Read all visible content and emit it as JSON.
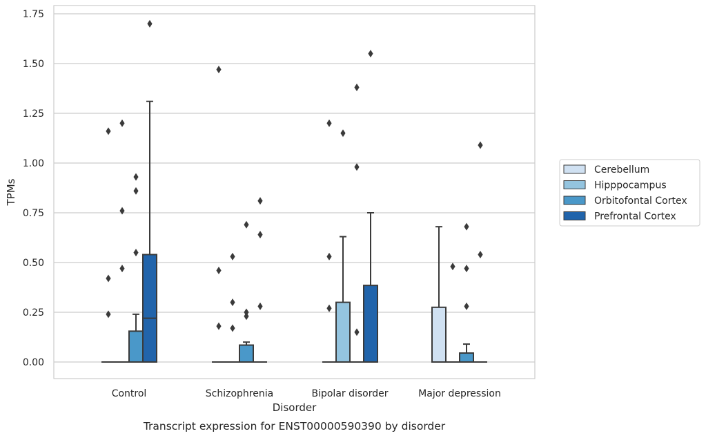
{
  "chart_data": {
    "type": "box",
    "title": "Transcript expression for ENST00000590390 by disorder",
    "xlabel": "Disorder",
    "ylabel": "TPMs",
    "ylim": [
      -0.08,
      1.78
    ],
    "yticks": [
      "0.00",
      "0.25",
      "0.50",
      "0.75",
      "1.00",
      "1.25",
      "1.50",
      "1.75"
    ],
    "ytick_values": [
      0,
      0.25,
      0.5,
      0.75,
      1.0,
      1.25,
      1.5,
      1.75
    ],
    "grid": true,
    "legend_position": "right",
    "categories": [
      "Control",
      "Schizophrenia",
      "Bipolar disorder",
      "Major depression"
    ],
    "series": [
      {
        "name": "Cerebellum",
        "color": "#d0e1f2",
        "boxes": [
          {
            "q1": 0,
            "median": 0,
            "q3": 0,
            "whisker_low": 0,
            "whisker_high": 0,
            "outliers": [
              0.24,
              0.42,
              1.16
            ]
          },
          {
            "q1": 0,
            "median": 0,
            "q3": 0,
            "whisker_low": 0,
            "whisker_high": 0,
            "outliers": [
              0.18,
              0.46,
              1.47
            ]
          },
          {
            "q1": 0,
            "median": 0,
            "q3": 0,
            "whisker_low": 0,
            "whisker_high": 0,
            "outliers": [
              0.27,
              0.53,
              1.2
            ]
          },
          {
            "q1": 0,
            "median": 0,
            "q3": 0.275,
            "whisker_low": 0,
            "whisker_high": 0.68,
            "outliers": []
          }
        ]
      },
      {
        "name": "Hipppocampus",
        "color": "#94c4df",
        "boxes": [
          {
            "q1": 0,
            "median": 0,
            "q3": 0,
            "whisker_low": 0,
            "whisker_high": 0,
            "outliers": [
              0.47,
              0.76,
              1.2
            ]
          },
          {
            "q1": 0,
            "median": 0,
            "q3": 0,
            "whisker_low": 0,
            "whisker_high": 0,
            "outliers": [
              0.17,
              0.3,
              0.53
            ]
          },
          {
            "q1": 0,
            "median": 0,
            "q3": 0.3,
            "whisker_low": 0,
            "whisker_high": 0.63,
            "outliers": [
              1.15
            ]
          },
          {
            "q1": 0,
            "median": 0,
            "q3": 0,
            "whisker_low": 0,
            "whisker_high": 0,
            "outliers": [
              0.48
            ]
          }
        ]
      },
      {
        "name": "Orbitofontal Cortex",
        "color": "#4a98c9",
        "boxes": [
          {
            "q1": 0,
            "median": 0,
            "q3": 0.155,
            "whisker_low": 0,
            "whisker_high": 0.24,
            "outliers": [
              0.55,
              0.86,
              0.93
            ]
          },
          {
            "q1": 0,
            "median": 0,
            "q3": 0.085,
            "whisker_low": 0,
            "whisker_high": 0.1,
            "outliers": [
              0.23,
              0.25,
              0.69
            ]
          },
          {
            "q1": 0,
            "median": 0,
            "q3": 0,
            "whisker_low": 0,
            "whisker_high": 0,
            "outliers": [
              0.15,
              0.98,
              1.38
            ]
          },
          {
            "q1": 0,
            "median": 0,
            "q3": 0.045,
            "whisker_low": 0,
            "whisker_high": 0.09,
            "outliers": [
              0.28,
              0.47,
              0.68
            ]
          }
        ]
      },
      {
        "name": "Prefrontal Cortex",
        "color": "#2164ab",
        "boxes": [
          {
            "q1": 0,
            "median": 0.22,
            "q3": 0.54,
            "whisker_low": 0,
            "whisker_high": 1.31,
            "outliers": [
              1.7
            ]
          },
          {
            "q1": 0,
            "median": 0,
            "q3": 0,
            "whisker_low": 0,
            "whisker_high": 0,
            "outliers": [
              0.28,
              0.64,
              0.81
            ]
          },
          {
            "q1": 0,
            "median": 0,
            "q3": 0.385,
            "whisker_low": 0,
            "whisker_high": 0.75,
            "outliers": [
              1.55
            ]
          },
          {
            "q1": 0,
            "median": 0,
            "q3": 0,
            "whisker_low": 0,
            "whisker_high": 0,
            "outliers": [
              0.54,
              1.09
            ]
          }
        ]
      }
    ]
  }
}
